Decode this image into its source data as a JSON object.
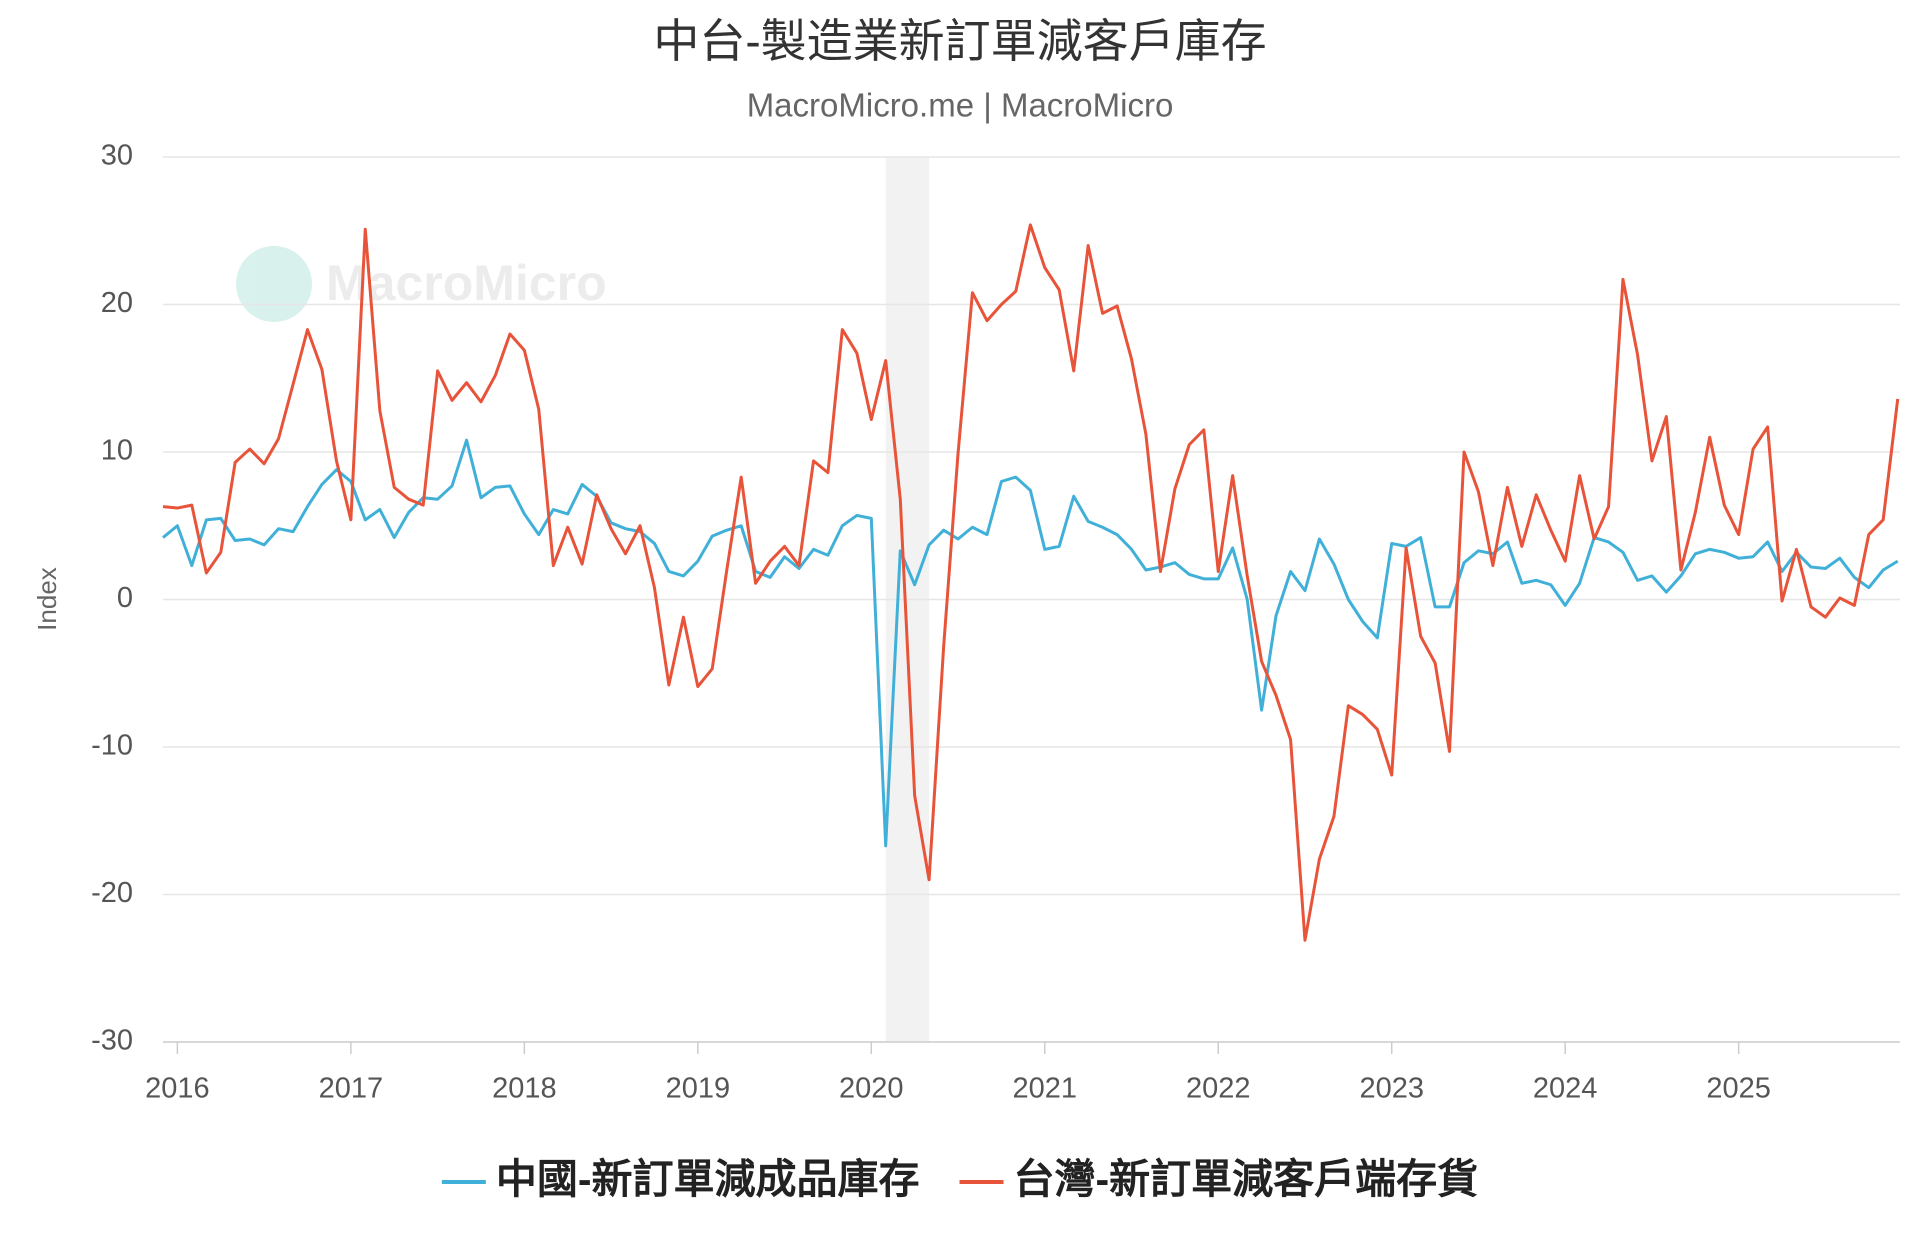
{
  "chart_data": {
    "type": "line",
    "title": "中台-製造業新訂單減客戶庫存",
    "subtitle": "MacroMicro.me | MacroMicro",
    "watermark": "MacroMicro",
    "y_label": "Index",
    "x": [
      2015.917,
      2016,
      2016.083,
      2016.167,
      2016.25,
      2016.333,
      2016.417,
      2016.5,
      2016.583,
      2016.667,
      2016.75,
      2016.833,
      2016.917,
      2017,
      2017.083,
      2017.167,
      2017.25,
      2017.333,
      2017.417,
      2017.5,
      2017.583,
      2017.667,
      2017.75,
      2017.833,
      2017.917,
      2018,
      2018.083,
      2018.167,
      2018.25,
      2018.333,
      2018.417,
      2018.5,
      2018.583,
      2018.667,
      2018.75,
      2018.833,
      2018.917,
      2019,
      2019.083,
      2019.167,
      2019.25,
      2019.333,
      2019.417,
      2019.5,
      2019.583,
      2019.667,
      2019.75,
      2019.833,
      2019.917,
      2020,
      2020.083,
      2020.167,
      2020.25,
      2020.333,
      2020.417,
      2020.5,
      2020.583,
      2020.667,
      2020.75,
      2020.833,
      2020.917,
      2021,
      2021.083,
      2021.167,
      2021.25,
      2021.333,
      2021.417,
      2021.5,
      2021.583,
      2021.667,
      2021.75,
      2021.833,
      2021.917,
      2022,
      2022.083,
      2022.167,
      2022.25,
      2022.333,
      2022.417,
      2022.5,
      2022.583,
      2022.667,
      2022.75,
      2022.833,
      2022.917,
      2023,
      2023.083,
      2023.167,
      2023.25,
      2023.333,
      2023.417,
      2023.5,
      2023.583,
      2023.667,
      2023.75,
      2023.833,
      2023.917,
      2024,
      2024.083,
      2024.167,
      2024.25,
      2024.333,
      2024.417,
      2024.5,
      2024.583,
      2024.667,
      2024.75,
      2024.833,
      2024.917,
      2025,
      2025.083,
      2025.167,
      2025.25,
      2025.333,
      2025.417,
      2025.5,
      2025.583,
      2025.667,
      2025.75,
      2025.833,
      2025.917
    ],
    "series": [
      {
        "name": "中國-新訂單減成品庫存",
        "color": "#41b0d9",
        "values": [
          4.2,
          5.0,
          2.3,
          5.4,
          5.5,
          4.0,
          4.1,
          3.7,
          4.8,
          4.6,
          6.3,
          7.8,
          8.8,
          8.0,
          5.4,
          6.1,
          4.2,
          5.9,
          6.9,
          6.8,
          7.7,
          10.8,
          6.9,
          7.6,
          7.7,
          5.8,
          4.4,
          6.1,
          5.8,
          7.8,
          7.0,
          5.2,
          4.8,
          4.6,
          3.8,
          1.9,
          1.6,
          2.6,
          4.3,
          4.7,
          5.0,
          1.9,
          1.5,
          2.9,
          2.1,
          3.4,
          3.0,
          5.0,
          5.7,
          5.5,
          -16.7,
          3.3,
          1.0,
          3.7,
          4.7,
          4.1,
          4.9,
          4.4,
          8.0,
          8.3,
          7.4,
          3.4,
          3.6,
          7.0,
          5.3,
          4.9,
          4.4,
          3.4,
          2.0,
          2.2,
          2.5,
          1.7,
          1.4,
          1.4,
          3.5,
          0,
          -7.5,
          -1.1,
          1.9,
          0.6,
          4.1,
          2.4,
          0,
          -1.5,
          -2.6,
          3.8,
          3.6,
          4.2,
          -0.5,
          -0.5,
          2.5,
          3.3,
          3.1,
          3.9,
          1.1,
          1.3,
          1.0,
          -0.4,
          1.1,
          4.2,
          3.9,
          3.2,
          1.3,
          1.6,
          0.5,
          1.6,
          3.1,
          3.4,
          3.2,
          2.8,
          2.9,
          3.9,
          1.9,
          3.2,
          2.2,
          2.1,
          2.8,
          1.5,
          0.8,
          2.0,
          2.6
        ]
      },
      {
        "name": "台灣-新訂單減客戶端存貨",
        "color": "#e8543a",
        "values": [
          6.3,
          6.2,
          6.4,
          1.8,
          3.2,
          9.3,
          10.2,
          9.2,
          10.9,
          14.6,
          18.3,
          15.6,
          9.4,
          5.4,
          25.1,
          12.8,
          7.6,
          6.8,
          6.4,
          15.5,
          13.5,
          14.7,
          13.4,
          15.2,
          18.0,
          16.9,
          12.9,
          2.3,
          4.9,
          2.4,
          7.1,
          4.8,
          3.1,
          5.0,
          0.8,
          -5.8,
          -1.2,
          -5.9,
          -4.7,
          2.0,
          8.3,
          1.1,
          2.6,
          3.6,
          2.3,
          9.4,
          8.6,
          18.3,
          16.7,
          12.2,
          16.2,
          6.8,
          -13.3,
          -19.0,
          -3.2,
          9.9,
          20.8,
          18.9,
          20.0,
          20.9,
          25.4,
          22.5,
          21.0,
          15.5,
          24.0,
          19.4,
          19.9,
          16.3,
          11.2,
          1.9,
          7.5,
          10.5,
          11.5,
          1.9,
          8.4,
          1.6,
          -4.2,
          -6.5,
          -9.5,
          -23.1,
          -17.6,
          -14.7,
          -7.2,
          -7.8,
          -8.8,
          -11.9,
          3.5,
          -2.5,
          -4.3,
          -10.3,
          10.0,
          7.3,
          2.3,
          7.6,
          3.6,
          7.1,
          4.7,
          2.6,
          8.4,
          4.1,
          6.3,
          21.7,
          16.6,
          9.4,
          12.4,
          2.0,
          5.9,
          11.0,
          6.4,
          4.4,
          10.2,
          11.7,
          -0.1,
          3.4,
          -0.5,
          -1.2,
          0.1,
          -0.4,
          4.4,
          5.4,
          13.6
        ]
      }
    ],
    "highlight_x": [
      2020.083,
      2020.333
    ],
    "xlim": [
      2015.917,
      2025.93
    ],
    "xticks": [
      2016,
      2017,
      2018,
      2019,
      2020,
      2021,
      2022,
      2023,
      2024,
      2025
    ],
    "ylim": [
      -30,
      30
    ],
    "yticks": [
      -30,
      -20,
      -10,
      0,
      10,
      20,
      30
    ],
    "grid": true,
    "legend": "bottom"
  }
}
